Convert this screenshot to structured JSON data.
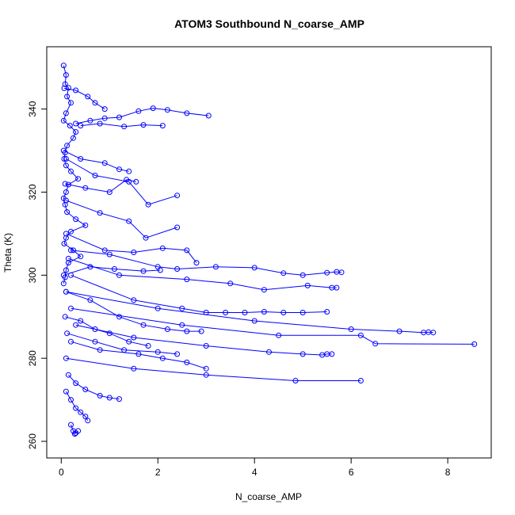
{
  "chart_data": {
    "type": "line",
    "title": "ATOM3 Southbound N_coarse_AMP",
    "xlabel": "N_coarse_AMP",
    "ylabel": "Theta (K)",
    "xlim": [
      -0.3,
      8.9
    ],
    "ylim": [
      256,
      355
    ],
    "x_ticks": [
      0,
      2,
      4,
      6,
      8
    ],
    "y_ticks": [
      260,
      280,
      300,
      320,
      340
    ],
    "grid": false,
    "marker": "open-circle",
    "series_color": "#0000ff",
    "series": [
      {
        "x": [
          0.05,
          0.1,
          0.08,
          0.15,
          0.12,
          0.2,
          0.1,
          0.05,
          0.18,
          0.3,
          0.25,
          0.12,
          0.08,
          0.06,
          0.1,
          0.2,
          0.35,
          0.15,
          0.1,
          0.05,
          0.08,
          0.12,
          0.3,
          0.5,
          0.2,
          0.1,
          0.06,
          0.25,
          0.4,
          0.15,
          0.1,
          0.08,
          0.05
        ],
        "y": [
          350.5,
          348.2,
          346.0,
          345.1,
          343.0,
          341.5,
          339.0,
          337.2,
          336.0,
          334.5,
          333.0,
          331.2,
          329.5,
          328.0,
          326.4,
          325.0,
          323.2,
          321.8,
          320.0,
          318.5,
          317.0,
          315.2,
          313.5,
          312.0,
          310.5,
          309.0,
          307.6,
          306.0,
          304.5,
          303.0,
          301.2,
          299.5,
          298.0
        ]
      },
      {
        "x": [
          0.3,
          0.6,
          0.9,
          1.2,
          1.6,
          1.9,
          2.2,
          2.6,
          3.05
        ],
        "y": [
          336.5,
          337.2,
          337.8,
          338.0,
          339.5,
          340.2,
          339.8,
          339.0,
          338.4
        ]
      },
      {
        "x": [
          0.4,
          0.8,
          1.3,
          1.7,
          2.1
        ],
        "y": [
          336.0,
          336.5,
          335.8,
          336.2,
          336.0
        ]
      },
      {
        "x": [
          0.1,
          0.7,
          1.4,
          1.8,
          2.4
        ],
        "y": [
          328.0,
          324.0,
          322.5,
          317.0,
          319.2
        ]
      },
      {
        "x": [
          0.2,
          1.0,
          2.0,
          2.4,
          3.2,
          4.0,
          4.6,
          5.0,
          5.5,
          5.7,
          5.8
        ],
        "y": [
          306.0,
          305.0,
          302.0,
          301.5,
          302.0,
          301.8,
          300.5,
          300.0,
          300.6,
          300.8,
          300.7
        ]
      },
      {
        "x": [
          0.15,
          1.2,
          2.6,
          3.5,
          4.2,
          5.1,
          5.6,
          5.7
        ],
        "y": [
          304.0,
          300.0,
          299.0,
          298.0,
          296.5,
          297.5,
          297.0,
          297.0
        ]
      },
      {
        "x": [
          0.2,
          1.5,
          2.5,
          3.0,
          3.4,
          3.8,
          4.2,
          4.6,
          5.0,
          5.5
        ],
        "y": [
          300.0,
          294.0,
          292.0,
          291.0,
          291.0,
          291.0,
          291.2,
          291.0,
          291.0,
          291.2
        ]
      },
      {
        "x": [
          0.1,
          2.0,
          4.0,
          6.0,
          7.0,
          7.5,
          7.6,
          7.7
        ],
        "y": [
          296.0,
          292.0,
          289.0,
          287.0,
          286.5,
          286.2,
          286.3,
          286.2
        ]
      },
      {
        "x": [
          0.2,
          2.5,
          4.5,
          6.2,
          6.5,
          8.55
        ],
        "y": [
          292.0,
          288.0,
          285.5,
          285.5,
          283.5,
          283.4
        ]
      },
      {
        "x": [
          0.3,
          1.5,
          3.0,
          4.3,
          5.0,
          5.4,
          5.5,
          5.6
        ],
        "y": [
          288.0,
          285.0,
          283.0,
          281.5,
          281.0,
          280.8,
          281.0,
          281.0
        ]
      },
      {
        "x": [
          0.2,
          0.8,
          1.6,
          2.1,
          2.6,
          3.0
        ],
        "y": [
          284.0,
          282.0,
          281.0,
          280.0,
          279.0,
          277.5
        ]
      },
      {
        "x": [
          0.1,
          1.5,
          3.0,
          4.85,
          6.2
        ],
        "y": [
          280.0,
          277.5,
          276.0,
          274.6,
          274.6
        ]
      },
      {
        "x": [
          0.15,
          0.3,
          0.5,
          0.8,
          1.0,
          1.2
        ],
        "y": [
          276.0,
          274.0,
          272.5,
          271.0,
          270.5,
          270.2
        ]
      },
      {
        "x": [
          0.1,
          0.2,
          0.3,
          0.4,
          0.5,
          0.55
        ],
        "y": [
          272.0,
          270.0,
          268.0,
          267.0,
          266.0,
          265.0
        ]
      },
      {
        "x": [
          0.2,
          0.25,
          0.3,
          0.28,
          0.35
        ],
        "y": [
          264.0,
          262.5,
          262.0,
          261.8,
          262.5
        ]
      },
      {
        "x": [
          0.05,
          0.6,
          1.1,
          1.7,
          2.05
        ],
        "y": [
          300.0,
          302.0,
          301.5,
          301.0,
          301.2
        ]
      },
      {
        "x": [
          0.1,
          0.9,
          1.5,
          2.1,
          2.6,
          2.8
        ],
        "y": [
          310.0,
          306.0,
          305.5,
          306.5,
          306.0,
          303.0
        ]
      },
      {
        "x": [
          0.1,
          0.8,
          1.4,
          1.75,
          2.4
        ],
        "y": [
          318.0,
          315.0,
          313.0,
          309.0,
          311.5
        ]
      },
      {
        "x": [
          0.08,
          0.5,
          1.0,
          1.35,
          1.55
        ],
        "y": [
          322.0,
          321.0,
          320.0,
          323.0,
          322.5
        ]
      },
      {
        "x": [
          0.05,
          0.4,
          0.9,
          1.2,
          1.4
        ],
        "y": [
          330.0,
          328.0,
          327.0,
          325.5,
          325.0
        ]
      },
      {
        "x": [
          0.1,
          0.6,
          1.2,
          1.7,
          2.2,
          2.6,
          2.9
        ],
        "y": [
          296.0,
          294.0,
          290.0,
          288.0,
          287.0,
          286.5,
          286.5
        ]
      },
      {
        "x": [
          0.12,
          0.7,
          1.3,
          2.0,
          2.4
        ],
        "y": [
          286.0,
          284.0,
          282.0,
          281.5,
          281.0
        ]
      },
      {
        "x": [
          0.08,
          0.4,
          0.7,
          1.0,
          1.4,
          1.8
        ],
        "y": [
          290.0,
          289.0,
          287.0,
          286.0,
          284.0,
          283.0
        ]
      },
      {
        "x": [
          0.06,
          0.3,
          0.55,
          0.7,
          0.9
        ],
        "y": [
          345.0,
          344.5,
          343.0,
          341.5,
          340.0
        ]
      }
    ]
  }
}
